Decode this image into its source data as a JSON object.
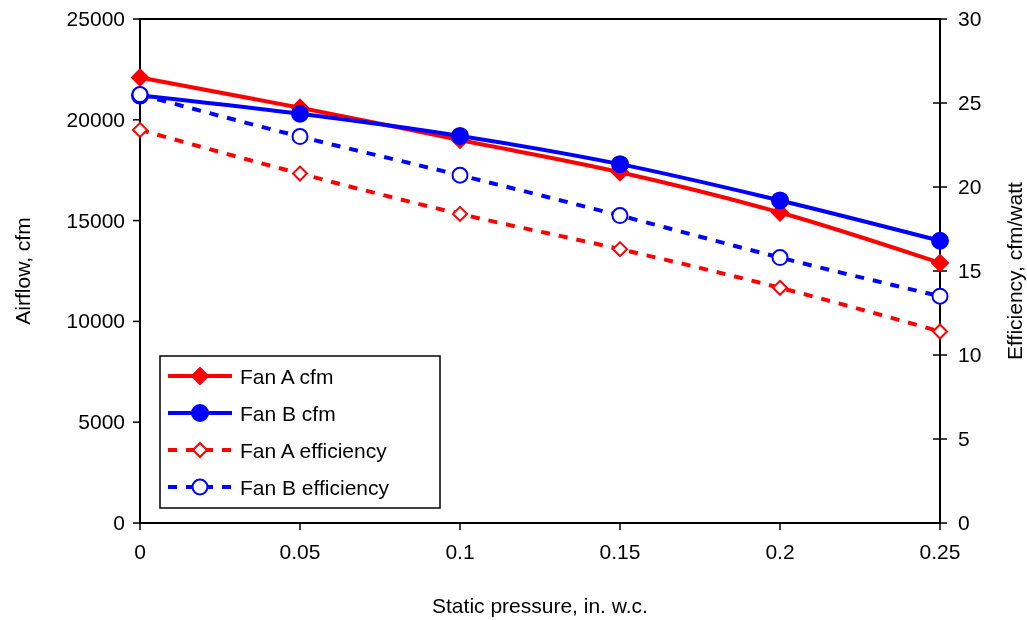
{
  "chart_data": {
    "type": "line",
    "xlabel": "Static pressure, in. w.c.",
    "ylabel": "Airflow, cfm",
    "y2label": "Efficiency, cfm/watt",
    "x": [
      0,
      0.05,
      0.1,
      0.15,
      0.2,
      0.25
    ],
    "xlim": [
      0,
      0.25
    ],
    "xticks": [
      0,
      0.05,
      0.1,
      0.15,
      0.2,
      0.25
    ],
    "ylim": [
      0,
      25000
    ],
    "yticks": [
      0,
      5000,
      10000,
      15000,
      20000,
      25000
    ],
    "y2lim": [
      0,
      30
    ],
    "y2ticks": [
      0,
      5,
      10,
      15,
      20,
      25,
      30
    ],
    "legend": "bottom left",
    "grid": false,
    "series": [
      {
        "name": "Fan A cfm",
        "color": "#ff0000",
        "marker": "diamond",
        "line_style": "solid",
        "values": [
          22100,
          20600,
          19000,
          17400,
          15400,
          12900
        ]
      },
      {
        "name": "Fan B cfm",
        "color": "#0000ff",
        "marker": "circle",
        "line_style": "solid",
        "values": [
          21200,
          20300,
          19200,
          17800,
          16000,
          14000
        ]
      },
      {
        "name": "Fan A efficiency",
        "color": "#ff0000",
        "marker": "diamond",
        "line_style": "dashed",
        "axis": "y2",
        "values": [
          23.4,
          20.8,
          18.4,
          16.3,
          14.0,
          11.4
        ]
      },
      {
        "name": "Fan B efficiency",
        "color": "#0000ff",
        "marker": "circle",
        "line_style": "dashed",
        "axis": "y2",
        "values": [
          25.5,
          23.0,
          20.7,
          18.3,
          15.8,
          13.5
        ]
      }
    ]
  }
}
